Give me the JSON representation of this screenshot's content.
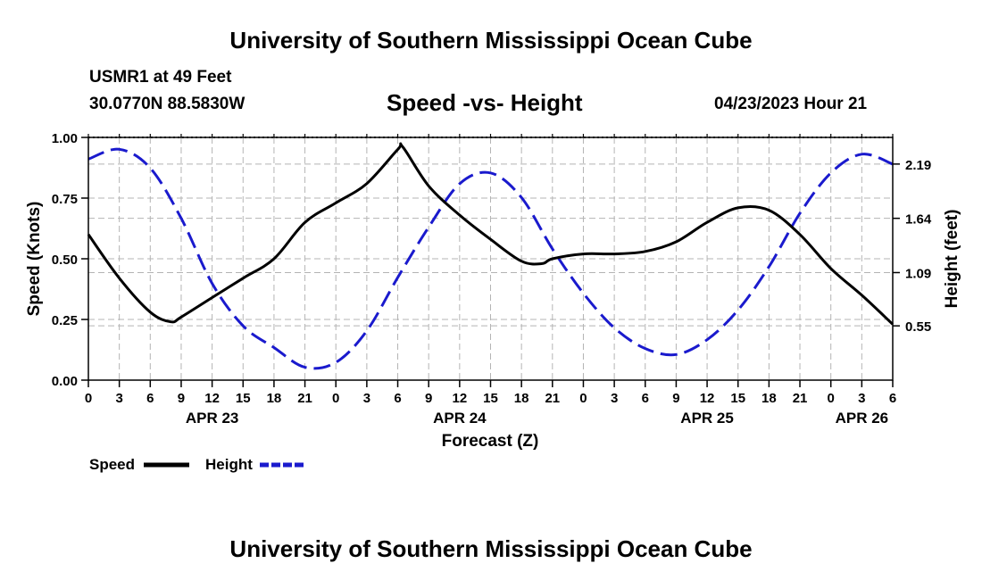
{
  "header": {
    "title": "University of Southern Mississippi Ocean Cube",
    "station": "USMR1 at 49 Feet",
    "coords": "30.0770N  88.5830W",
    "subtitle": "Speed -vs- Height",
    "datetime": "04/23/2023 Hour 21"
  },
  "footer": {
    "title": "University of Southern Mississippi Ocean Cube"
  },
  "chart_data": {
    "type": "line",
    "title": "Speed -vs- Height",
    "xlabel": "Forecast (Z)",
    "ylabel_left": "Speed (Knots)",
    "ylabel_right": "Height (feet)",
    "x_range_hours": [
      0,
      78
    ],
    "x_ticks": {
      "hours": [
        0,
        3,
        6,
        9,
        12,
        15,
        18,
        21,
        24,
        27,
        30,
        33,
        36,
        39,
        42,
        45,
        48,
        51,
        54,
        57,
        60,
        63,
        66,
        69,
        72,
        75,
        78
      ],
      "labels": [
        "0",
        "3",
        "6",
        "9",
        "12",
        "15",
        "18",
        "21",
        "0",
        "3",
        "6",
        "9",
        "12",
        "15",
        "18",
        "21",
        "0",
        "3",
        "6",
        "9",
        "12",
        "15",
        "18",
        "21",
        "0",
        "3",
        "6"
      ]
    },
    "date_labels": [
      {
        "hour": 12,
        "label": "APR 23"
      },
      {
        "hour": 36,
        "label": "APR 24"
      },
      {
        "hour": 60,
        "label": "APR 25"
      },
      {
        "hour": 75,
        "label": "APR 26"
      }
    ],
    "left_axis": {
      "range": [
        0,
        1.0
      ],
      "ticks": [
        0,
        0.25,
        0.5,
        0.75,
        1.0
      ],
      "tick_labels": [
        "0.00",
        "0.25",
        "0.50",
        "0.75",
        "1.00"
      ]
    },
    "right_axis": {
      "range": [
        0,
        2.46
      ],
      "ticks": [
        0.55,
        1.09,
        1.64,
        2.19
      ],
      "tick_labels": [
        "0.55",
        "1.09",
        "1.64",
        "2.19"
      ]
    },
    "grid": true,
    "legend_position": "bottom-left",
    "series": [
      {
        "name": "Speed",
        "axis": "left",
        "color": "#000000",
        "style": "solid",
        "x": [
          0,
          3,
          6,
          8,
          9,
          12,
          15,
          18,
          21,
          24,
          27,
          30,
          30.5,
          33,
          36,
          39,
          42,
          44,
          45,
          48,
          51,
          54,
          57,
          60,
          63,
          66,
          69,
          72,
          75,
          78
        ],
        "y": [
          0.6,
          0.42,
          0.28,
          0.24,
          0.26,
          0.34,
          0.42,
          0.5,
          0.65,
          0.73,
          0.81,
          0.95,
          0.96,
          0.8,
          0.68,
          0.58,
          0.49,
          0.48,
          0.5,
          0.52,
          0.52,
          0.53,
          0.57,
          0.65,
          0.71,
          0.7,
          0.6,
          0.46,
          0.35,
          0.23
        ]
      },
      {
        "name": "Height",
        "axis": "right",
        "color": "#1a1acd",
        "style": "dashed",
        "x": [
          0,
          3,
          6,
          9,
          12,
          15,
          18,
          21,
          24,
          27,
          30,
          33,
          36,
          39,
          42,
          45,
          48,
          51,
          54,
          57,
          60,
          63,
          66,
          69,
          72,
          75,
          78
        ],
        "y": [
          2.24,
          2.34,
          2.15,
          1.64,
          0.98,
          0.55,
          0.33,
          0.13,
          0.18,
          0.5,
          1.04,
          1.55,
          1.99,
          2.1,
          1.85,
          1.33,
          0.88,
          0.53,
          0.32,
          0.26,
          0.41,
          0.71,
          1.15,
          1.69,
          2.1,
          2.29,
          2.19
        ]
      }
    ]
  }
}
